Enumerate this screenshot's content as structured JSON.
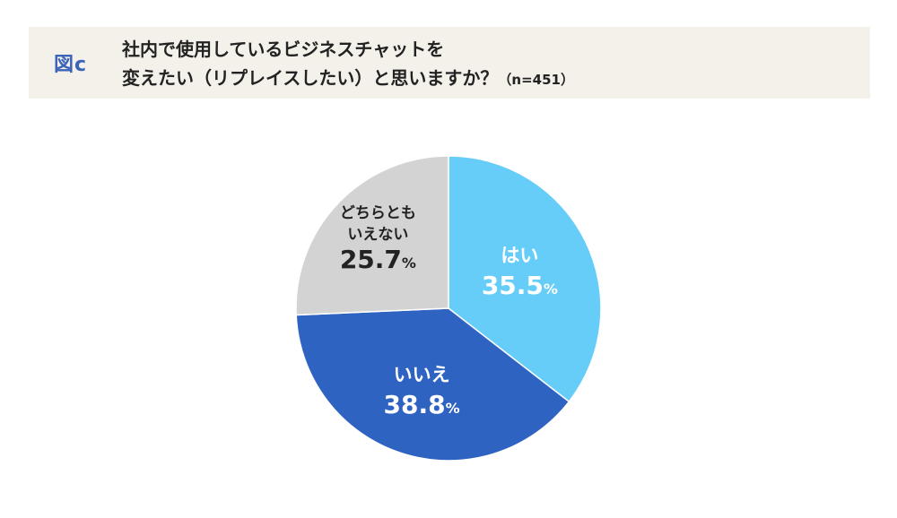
{
  "figure_label": "図c",
  "title_line1": "社内で使用しているビジネスチャットを",
  "title_line2": "変えたい（リプレイスしたい）と思いますか？",
  "sample_size": "（n=451）",
  "colors": {
    "header_bg": "#f4f1ea",
    "label_accent": "#3b63b8"
  },
  "chart_data": {
    "type": "pie",
    "unit": "%",
    "slices": [
      {
        "label_lines": [
          "はい"
        ],
        "value": 35.5,
        "value_text": "35.5",
        "color": "#66cdf8",
        "text_color": "#ffffff"
      },
      {
        "label_lines": [
          "いいえ"
        ],
        "value": 38.8,
        "value_text": "38.8",
        "color": "#2f63c2",
        "text_color": "#ffffff"
      },
      {
        "label_lines": [
          "どちらとも",
          "いえない"
        ],
        "value": 25.7,
        "value_text": "25.7",
        "color": "#d3d3d3",
        "text_color": "#222222"
      }
    ]
  }
}
